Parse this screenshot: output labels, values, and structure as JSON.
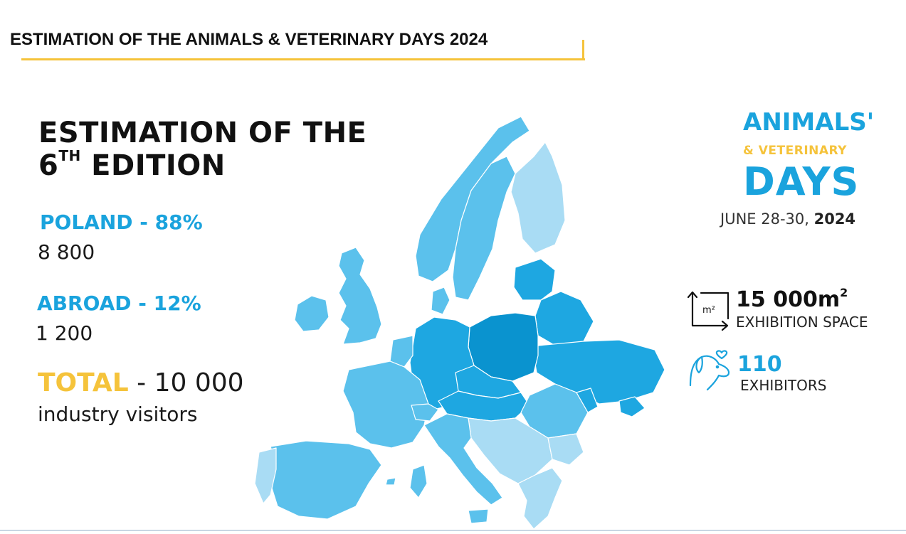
{
  "slide_title": "ESTIMATION OF THE ANIMALS & VETERINARY DAYS 2024",
  "heading": {
    "line1": "ESTIMATION OF THE",
    "line2_num": "6",
    "line2_sup": "TH",
    "line2_rest": " EDITION"
  },
  "stats": {
    "poland_label": "POLAND - 88%",
    "poland_value": "8 800",
    "abroad_label": "ABROAD - 12%",
    "abroad_value": "1 200",
    "total_label": "TOTAL",
    "total_value": " - 10 000",
    "total_sub": "industry visitors"
  },
  "logo": {
    "line1": "ANIMALS'",
    "line2": "& VETERINARY",
    "line3": "DAYS",
    "dates_prefix": "JUNE 28-30, ",
    "dates_year": "2024"
  },
  "space": {
    "icon_text": "m²",
    "value": "15 000m",
    "unit_sup": "2",
    "label": "EXHIBITION SPACE"
  },
  "exhibitors": {
    "value": "110",
    "label": "EXHIBITORS"
  },
  "colors": {
    "accent_blue": "#1aa3dd",
    "accent_yellow": "#f5c33b",
    "poland_fill": "#0a93cf",
    "neighbor_fill": "#1ea7e1",
    "europe_fill": "#5bc1ec",
    "far_fill": "#a9dcf4"
  }
}
